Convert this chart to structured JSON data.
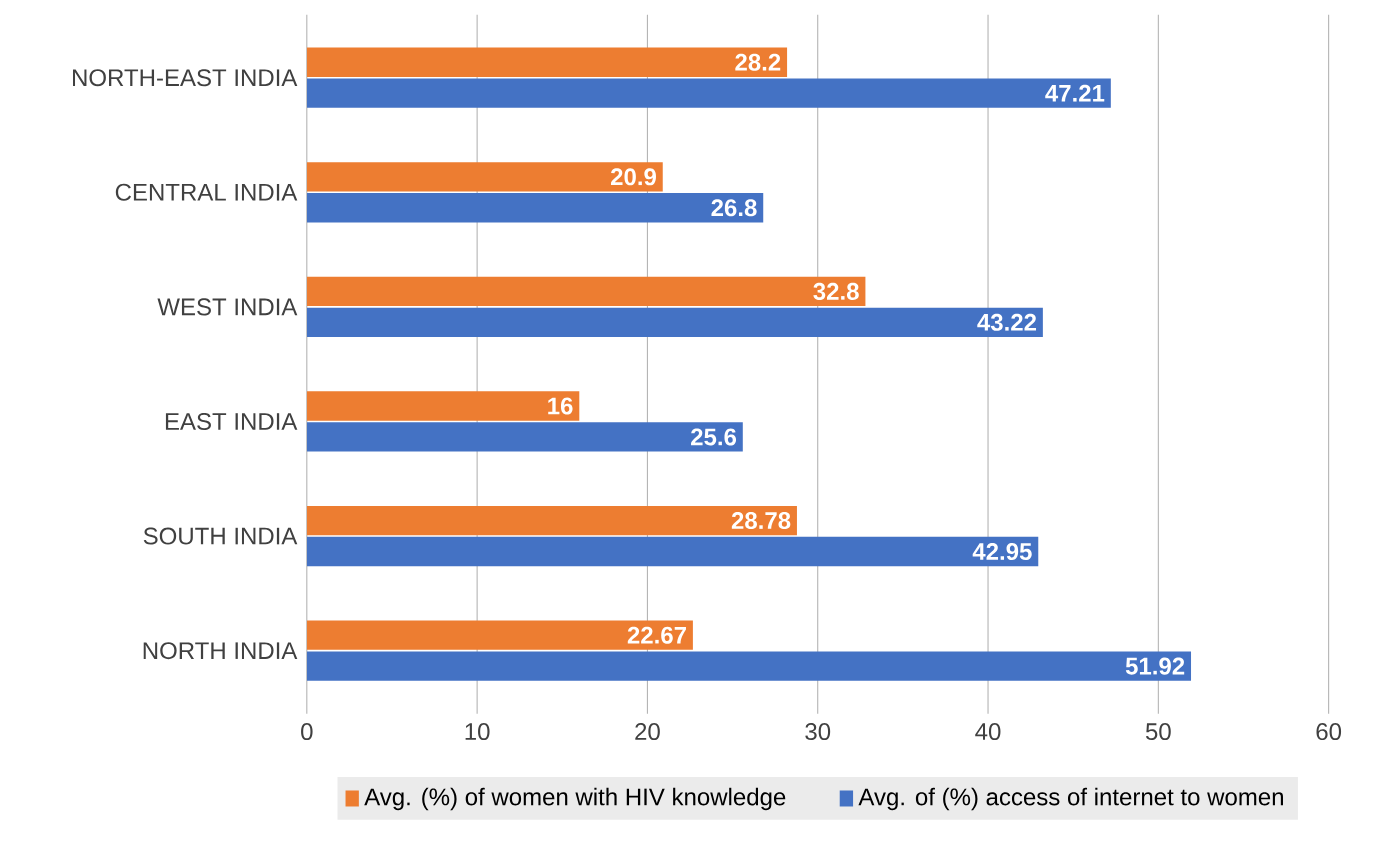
{
  "chart_data": {
    "type": "bar",
    "orientation": "horizontal",
    "categories": [
      "NORTH-EAST INDIA",
      "CENTRAL INDIA",
      "WEST INDIA",
      "EAST INDIA",
      "SOUTH INDIA",
      "NORTH INDIA"
    ],
    "series": [
      {
        "name": "Avg. (%) of women with HIV knowledge",
        "color": "#ed7d31",
        "values": [
          28.2,
          20.9,
          32.8,
          16,
          28.78,
          22.67
        ]
      },
      {
        "name": "Avg. of (%) access of internet to women",
        "color": "#4472c4",
        "values": [
          47.21,
          26.8,
          43.22,
          25.6,
          42.95,
          51.92
        ]
      }
    ],
    "xlim": [
      0,
      60
    ],
    "xticks": [
      0,
      10,
      20,
      30,
      40,
      50,
      60
    ],
    "grid": "x",
    "legend": "bottom",
    "data_labels": true
  }
}
